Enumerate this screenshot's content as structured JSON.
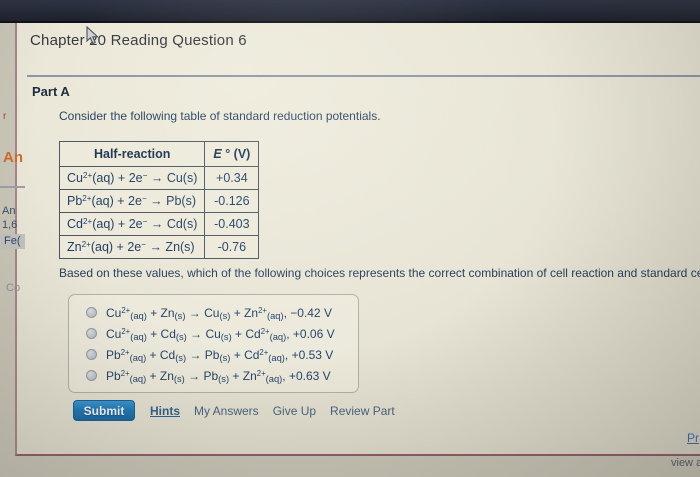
{
  "page": {
    "title": "Chapter 20 Reading Question 6",
    "part_label": "Part A",
    "intro": "Consider the following table of standard reduction potentials.",
    "question": "Based on these values, which of the following choices represents the correct combination of cell reaction and standard cell potential"
  },
  "table": {
    "headers": {
      "half_reaction": "Half-reaction",
      "potential_html": "<i>E</i> ° (V)"
    },
    "rows": [
      {
        "reaction_html": "Cu<sup>2+</sup>(aq) + 2e<sup>−</sup> → Cu(s)",
        "potential": "+0.34"
      },
      {
        "reaction_html": "Pb<sup>2+</sup>(aq) + 2e<sup>−</sup> → Pb(s)",
        "potential": "-0.126"
      },
      {
        "reaction_html": "Cd<sup>2+</sup>(aq) + 2e<sup>−</sup> → Cd(s)",
        "potential": "-0.403"
      },
      {
        "reaction_html": "Zn<sup>2+</sup>(aq) + 2e<sup>−</sup> → Zn(s)",
        "potential": "-0.76"
      }
    ]
  },
  "choices": [
    {
      "formula_html": "Cu<sup>2+</sup><sub>(aq)</sub> + Zn<sub>(s)</sub> → Cu<sub>(s)</sub> + Zn<sup>2+</sup><sub>(aq)</sub>, −0.42 V"
    },
    {
      "formula_html": "Cu<sup>2+</sup><sub>(aq)</sub> + Cd<sub>(s)</sub> → Cu<sub>(s)</sub> + Cd<sup>2+</sup><sub>(aq)</sub>, +0.06 V"
    },
    {
      "formula_html": "Pb<sup>2+</sup><sub>(aq)</sub> + Cd<sub>(s)</sub> → Pb<sub>(s)</sub> + Cd<sup>2+</sup><sub>(aq)</sub>, +0.53 V"
    },
    {
      "formula_html": "Pb<sup>2+</sup><sub>(aq)</sub> + Zn<sub>(s)</sub> → Pb<sub>(s)</sub> + Zn<sup>2+</sup><sub>(aq)</sub>, +0.63 V"
    }
  ],
  "actions": {
    "submit_label": "Submit",
    "links": [
      "Hints",
      "My Answers",
      "Give Up",
      "Review Part"
    ]
  },
  "footer": {
    "pr_link": "Pr",
    "view_text": "view a"
  },
  "sidebar_fragments": {
    "f1": "r",
    "f2": "An",
    "f3": "An",
    "f4": "1,6",
    "f5": "Fe(",
    "f6": "Co"
  },
  "colors": {
    "topbar": "#242937",
    "panel_border": "#905d68",
    "submit_blue": "#2179b8",
    "hints_link_blue": "#35608f",
    "body_text_navy": "#24405f",
    "fragment_orange": "#cf6b2d"
  }
}
